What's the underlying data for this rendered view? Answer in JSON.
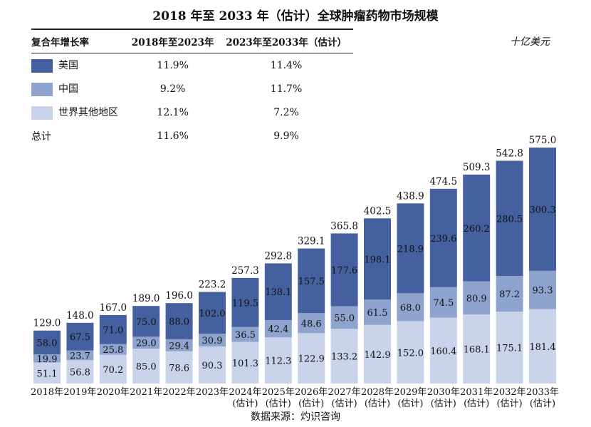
{
  "title": "2018 年至 2033 年（估计）全球肿瘤药物市场规模",
  "unit": "十亿美元",
  "source": "数据来源：灼识咨询",
  "cagr_table": {
    "headers": [
      "复合年增长率",
      "2018年至2023年",
      "2023年至2033年（估计）"
    ],
    "rows": [
      {
        "label": "美国",
        "swatch": "#44609e",
        "a": "11.9%",
        "b": "11.4%"
      },
      {
        "label": "中国",
        "swatch": "#8ea4cf",
        "a": "9.2%",
        "b": "11.7%"
      },
      {
        "label": "世界其他地区",
        "swatch": "#c9d3ea",
        "a": "12.1%",
        "b": "7.2%"
      },
      {
        "label": "总计",
        "swatch": "",
        "a": "11.6%",
        "b": "9.9%"
      }
    ]
  },
  "chart_data": {
    "type": "bar",
    "stacked": true,
    "categories": [
      "2018年",
      "2019年",
      "2020年",
      "2021年",
      "2022年",
      "2023年",
      "2024年\n(估计)",
      "2025年\n(估计)",
      "2026年\n(估计)",
      "2027年\n(估计)",
      "2028年\n(估计)",
      "2029年\n(估计)",
      "2030年\n(估计)",
      "2031年\n(估计)",
      "2032年\n(估计)",
      "2033年\n(估计)"
    ],
    "series": [
      {
        "name": "世界其他地区",
        "color": "#c9d3ea",
        "values": [
          51.1,
          56.8,
          70.2,
          85.0,
          78.6,
          90.3,
          101.3,
          112.3,
          122.9,
          133.2,
          142.9,
          152.0,
          160.4,
          168.1,
          175.1,
          181.4
        ]
      },
      {
        "name": "中国",
        "color": "#8ea4cf",
        "values": [
          19.9,
          23.7,
          25.8,
          29.0,
          29.4,
          30.9,
          36.5,
          42.4,
          48.6,
          55.0,
          61.5,
          68.0,
          74.5,
          80.9,
          87.2,
          93.3
        ]
      },
      {
        "name": "美国",
        "color": "#44609e",
        "values": [
          58.0,
          67.5,
          71.0,
          75.0,
          88.0,
          102.0,
          119.5,
          138.1,
          157.5,
          177.6,
          198.1,
          218.9,
          239.6,
          260.2,
          280.5,
          300.3
        ]
      }
    ],
    "totals": [
      129.0,
      148.0,
      167.0,
      189.0,
      196.0,
      223.2,
      257.3,
      292.8,
      329.1,
      365.8,
      402.5,
      438.9,
      474.5,
      509.3,
      542.8,
      575.0
    ],
    "segment_labels": [
      [
        "51.1",
        "56.8",
        "70.2",
        "85.0",
        "78.6",
        "90.3",
        "101.3",
        "112.3",
        "122.9",
        "133.2",
        "142.9",
        "152.0",
        "160.4",
        "168.1",
        "175.1",
        "181.4"
      ],
      [
        "19.9",
        "23.7",
        "25.8",
        "29.0",
        "29.4",
        "30.9",
        "36.5",
        "42.4",
        "48.6",
        "55.0",
        "61.5",
        "68.0",
        "74.5",
        "80.9",
        "87.2",
        "93.3"
      ],
      [
        "58.0",
        "67.5",
        "71.0",
        "75.0",
        "88.0",
        "102.0",
        "119.5",
        "138.1",
        "157.5",
        "177.6",
        "198.1",
        "218.9",
        "239.6",
        "260.2",
        "280.5",
        "300.3"
      ]
    ],
    "total_labels": [
      "129.0",
      "148.0",
      "167.0",
      "189.0",
      "196.0",
      "223.2",
      "257.3",
      "292.8",
      "329.1",
      "365.8",
      "402.5",
      "438.9",
      "474.5",
      "509.3",
      "542.8",
      "575.0"
    ],
    "ylim": [
      0,
      575
    ],
    "grid": false,
    "legend": "table at top-left"
  }
}
